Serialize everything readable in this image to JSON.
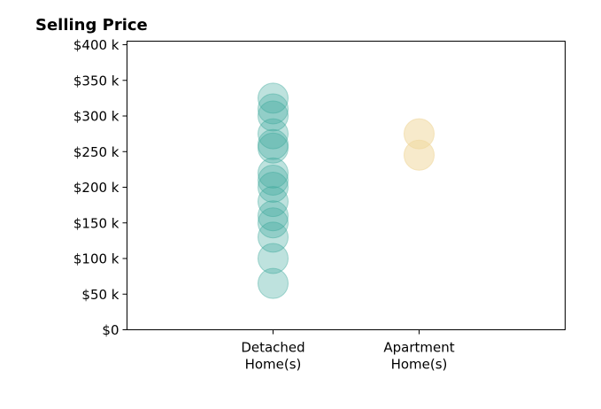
{
  "chart_data": {
    "type": "scatter",
    "title": "Selling Price",
    "xlabel": "",
    "ylabel": "",
    "categories": [
      [
        "Detached",
        "Home(s)"
      ],
      [
        "Apartment",
        "Home(s)"
      ]
    ],
    "y_ticks": [
      0,
      50000,
      100000,
      150000,
      200000,
      250000,
      300000,
      350000,
      400000
    ],
    "y_tick_labels": [
      "$0",
      "$50 k",
      "$100 k",
      "$150 k",
      "$200 k",
      "$250 k",
      "$300 k",
      "$350 k",
      "$400 k"
    ],
    "ylim": [
      0,
      405000
    ],
    "xlim": [
      -1,
      2
    ],
    "grid": false,
    "series": [
      {
        "category_index": 0,
        "color": "#3aa89a",
        "opacity": 0.33,
        "values": [
          65000,
          100000,
          130000,
          150000,
          160000,
          180000,
          200000,
          210000,
          220000,
          255000,
          260000,
          275000,
          300000,
          310000,
          325000
        ]
      },
      {
        "category_index": 1,
        "color": "#f0d9a0",
        "opacity": 0.55,
        "values": [
          245000,
          275000
        ]
      }
    ]
  }
}
